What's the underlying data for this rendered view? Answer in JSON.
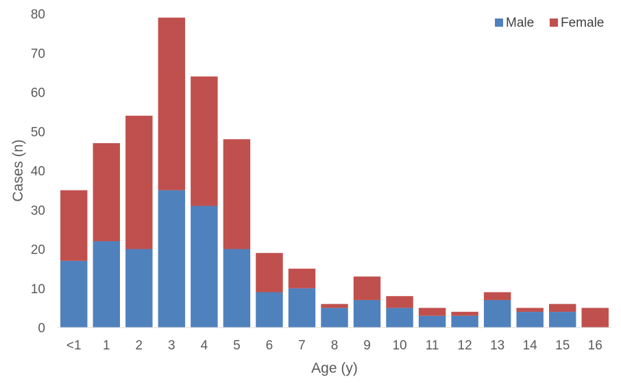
{
  "chart_data": {
    "type": "bar",
    "stacked": true,
    "categories": [
      "<1",
      "1",
      "2",
      "3",
      "4",
      "5",
      "6",
      "7",
      "8",
      "9",
      "10",
      "11",
      "12",
      "13",
      "14",
      "15",
      "16"
    ],
    "series": [
      {
        "name": "Male",
        "color": "#4F81BD",
        "values": [
          17,
          22,
          20,
          35,
          31,
          20,
          9,
          10,
          5,
          7,
          5,
          3,
          3,
          7,
          4,
          4,
          0
        ]
      },
      {
        "name": "Female",
        "color": "#C0504D",
        "values": [
          18,
          25,
          34,
          44,
          33,
          28,
          10,
          5,
          1,
          6,
          3,
          2,
          1,
          2,
          1,
          2,
          5
        ]
      }
    ],
    "title": "",
    "xlabel": "Age (y)",
    "ylabel": "Cases (n)",
    "ylim": [
      0,
      80
    ],
    "yticks": [
      0,
      10,
      20,
      30,
      40,
      50,
      60,
      70,
      80
    ],
    "grid": false,
    "legend": "top-right"
  }
}
